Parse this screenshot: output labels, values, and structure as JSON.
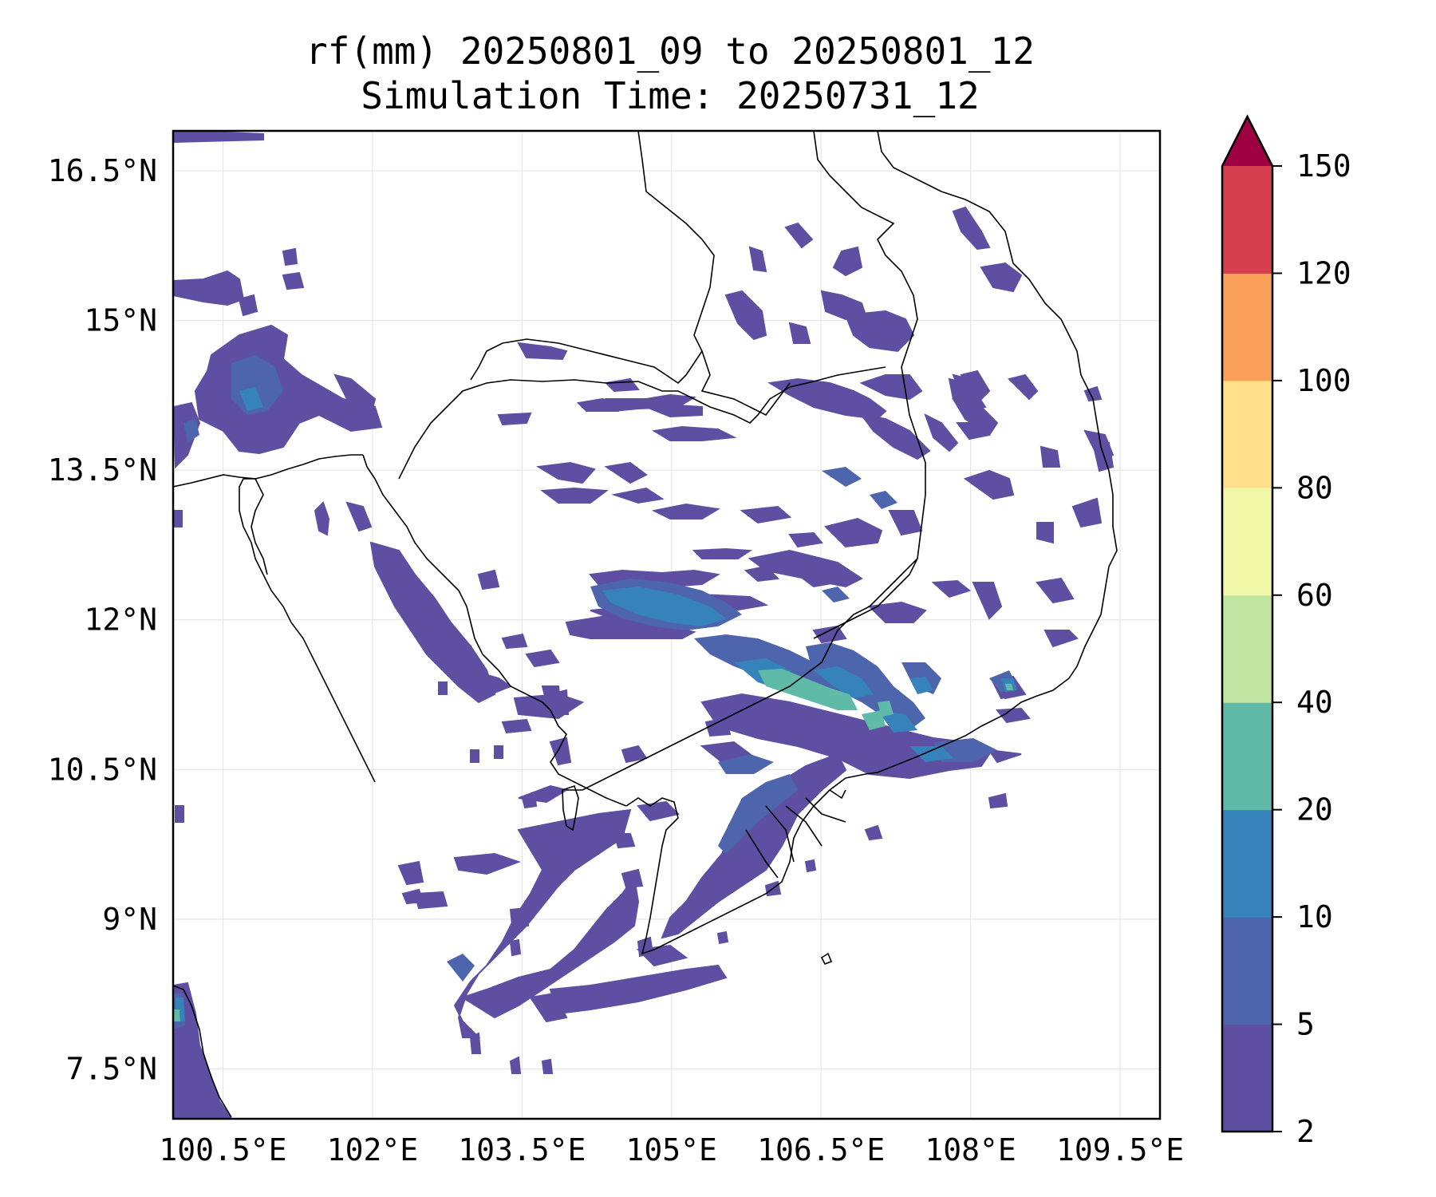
{
  "title_line1": "rf(mm) 20250801_09 to 20250801_12",
  "title_line2": "Simulation Time: 20250731_12",
  "map": {
    "lon_range": [
      100.0,
      109.9
    ],
    "lat_range": [
      7.0,
      16.9
    ],
    "grid": true,
    "x_ticks": [
      {
        "value": 100.5,
        "label": "100.5°E"
      },
      {
        "value": 102.0,
        "label": "102°E"
      },
      {
        "value": 103.5,
        "label": "103.5°E"
      },
      {
        "value": 105.0,
        "label": "105°E"
      },
      {
        "value": 106.5,
        "label": "106.5°E"
      },
      {
        "value": 108.0,
        "label": "108°E"
      },
      {
        "value": 109.5,
        "label": "109.5°E"
      }
    ],
    "y_ticks": [
      {
        "value": 16.5,
        "label": "16.5°N"
      },
      {
        "value": 15.0,
        "label": "15°N"
      },
      {
        "value": 13.5,
        "label": "13.5°N"
      },
      {
        "value": 12.0,
        "label": "12°N"
      },
      {
        "value": 10.5,
        "label": "10.5°N"
      },
      {
        "value": 9.0,
        "label": "9°N"
      },
      {
        "value": 7.5,
        "label": "7.5°N"
      }
    ]
  },
  "colorbar": {
    "levels": [
      {
        "label": "2",
        "color": "#5e4fa2"
      },
      {
        "label": "5",
        "color": "#4d65ad"
      },
      {
        "label": "10",
        "color": "#3682ba"
      },
      {
        "label": "20",
        "color": "#5fbaa8"
      },
      {
        "label": "40",
        "color": "#bfe5a0"
      },
      {
        "label": "60",
        "color": "#f1f9a9"
      },
      {
        "label": "80",
        "color": "#fee08b"
      },
      {
        "label": "100",
        "color": "#fba05b"
      },
      {
        "label": "120",
        "color": "#d6404e"
      },
      {
        "label": "150",
        "color": "#9e0142"
      }
    ],
    "extend": "max"
  },
  "rain_colors": [
    "#5e4fa2",
    "#4d65ad",
    "#3682ba",
    "#5fbaa8"
  ]
}
